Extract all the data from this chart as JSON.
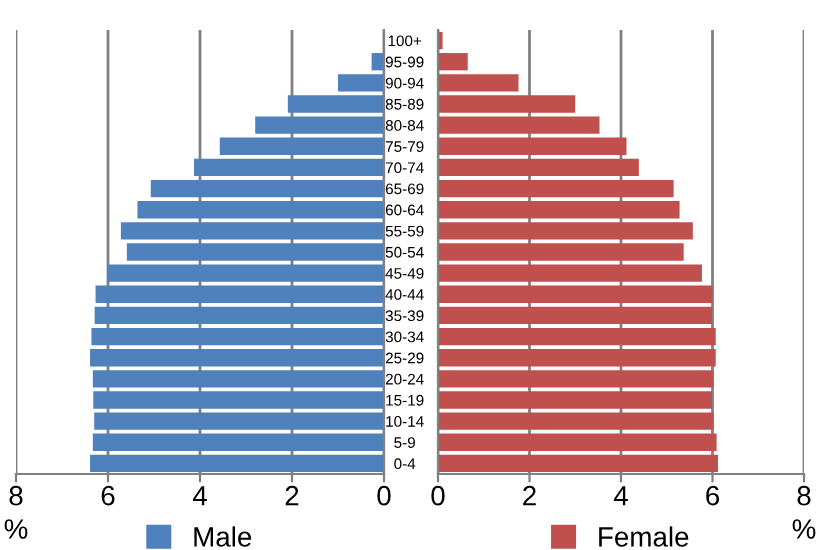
{
  "chart_data": [
    {
      "type": "bar",
      "orientation": "horizontal",
      "xlabel": "%",
      "xlim": [
        8,
        0
      ],
      "xticks": [
        8,
        6,
        4,
        2,
        0
      ],
      "grid": "x",
      "legend": "bottom",
      "categories": [
        null,
        null,
        null,
        null,
        null,
        null,
        null,
        null,
        null,
        null,
        null,
        null,
        null,
        null,
        null,
        null,
        null,
        null,
        null,
        null,
        null
      ],
      "series": [
        {
          "name": "Male",
          "color": "#4f81bd",
          "values": [
            null,
            0.27,
            1.0,
            2.09,
            2.8,
            3.57,
            4.13,
            5.07,
            5.36,
            5.72,
            5.59,
            6.01,
            6.27,
            6.29,
            6.36,
            6.39,
            6.33,
            6.32,
            6.3,
            6.33,
            6.39
          ]
        }
      ]
    },
    {
      "type": "bar",
      "orientation": "horizontal",
      "xlabel": "%",
      "xlim": [
        0,
        8
      ],
      "xticks": [
        0,
        2,
        4,
        6,
        8
      ],
      "grid": "x",
      "legend": "bottom",
      "categories": [
        "100+",
        "95-99",
        "90-94",
        "85-89",
        "80-84",
        "75-79",
        "70-74",
        "65-69",
        "60-64",
        "55-59",
        "50-54",
        "45-49",
        "40-44",
        "35-39",
        "30-34",
        "25-29",
        "20-24",
        "15-19",
        "10-14",
        "5-9",
        "0-4"
      ],
      "series": [
        {
          "name": "Female",
          "color": "#c0504d",
          "values": [
            0.1,
            0.65,
            1.76,
            3.0,
            3.53,
            4.12,
            4.39,
            5.15,
            5.28,
            5.57,
            5.37,
            5.77,
            6.0,
            5.99,
            6.07,
            6.07,
            6.02,
            5.99,
            6.02,
            6.09,
            6.12
          ]
        }
      ]
    }
  ]
}
